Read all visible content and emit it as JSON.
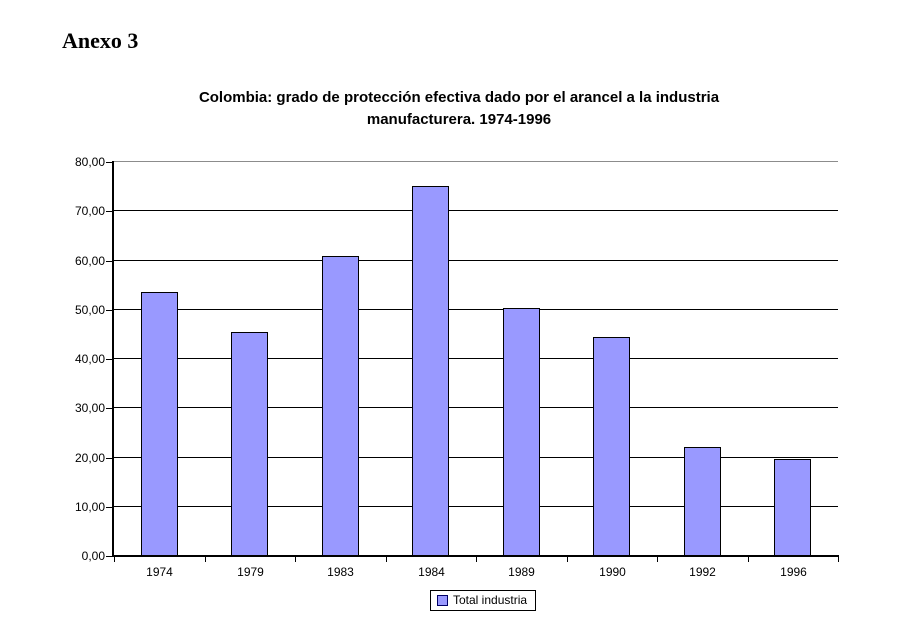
{
  "page": {
    "heading": "Anexo 3"
  },
  "chart_data": {
    "type": "bar",
    "title": "Colombia: grado de protección efectiva dado por el arancel a la industria manufacturera. 1974-1996",
    "title_lines": [
      "Colombia: grado de protección efectiva dado por el arancel a la industria",
      "manufacturera. 1974-1996"
    ],
    "categories": [
      "1974",
      "1979",
      "1983",
      "1984",
      "1989",
      "1990",
      "1992",
      "1996"
    ],
    "values": [
      53.6,
      45.5,
      60.9,
      75.1,
      50.3,
      44.5,
      22.1,
      19.6
    ],
    "series_name": "Total industria",
    "xlabel": "",
    "ylabel": "",
    "ylim": [
      0,
      80
    ],
    "ytick_step": 10,
    "ytick_labels": [
      "0,00",
      "10,00",
      "20,00",
      "30,00",
      "40,00",
      "50,00",
      "60,00",
      "70,00",
      "80,00"
    ],
    "grid": "horizontal",
    "legend_position": "bottom",
    "legend_entries": [
      "Total industria"
    ],
    "colors": {
      "bar_fill": "#9999FF",
      "bar_border": "#000000",
      "gridline": "#000000",
      "axis": "#000000",
      "plot_border": "#8C8C8C",
      "background": "#FFFFFF"
    }
  }
}
